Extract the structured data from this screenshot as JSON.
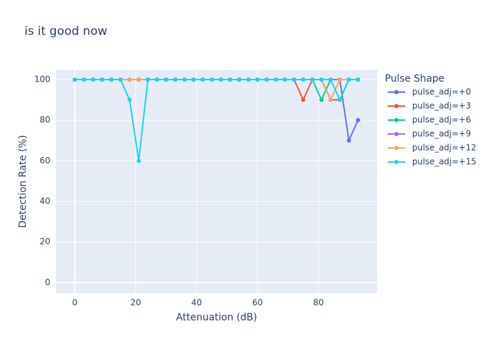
{
  "chart_data": {
    "type": "line",
    "title": "is it good now",
    "x_label": "Attenuation (dB)",
    "y_label": "Detection Rate (%)",
    "legend_title": "Pulse Shape",
    "x": [
      0,
      3,
      6,
      9,
      12,
      15,
      18,
      21,
      24,
      27,
      30,
      33,
      36,
      39,
      42,
      45,
      48,
      51,
      54,
      57,
      60,
      63,
      66,
      69,
      72,
      75,
      78,
      81,
      84,
      87,
      90,
      93
    ],
    "series": [
      {
        "name": "pulse_adj=+0",
        "color": "#636efa",
        "values": [
          100,
          100,
          100,
          100,
          100,
          100,
          100,
          100,
          100,
          100,
          100,
          100,
          100,
          100,
          100,
          100,
          100,
          100,
          100,
          100,
          100,
          100,
          100,
          100,
          100,
          100,
          100,
          100,
          100,
          100,
          70,
          80
        ]
      },
      {
        "name": "pulse_adj=+3",
        "color": "#EF553B",
        "values": [
          100,
          100,
          100,
          100,
          100,
          100,
          100,
          100,
          100,
          100,
          100,
          100,
          100,
          100,
          100,
          100,
          100,
          100,
          100,
          100,
          100,
          100,
          100,
          100,
          100,
          90,
          100,
          100,
          90,
          90,
          100,
          100
        ]
      },
      {
        "name": "pulse_adj=+6",
        "color": "#00cc96",
        "values": [
          100,
          100,
          100,
          100,
          100,
          100,
          100,
          100,
          100,
          100,
          100,
          100,
          100,
          100,
          100,
          100,
          100,
          100,
          100,
          100,
          100,
          100,
          100,
          100,
          100,
          100,
          100,
          90,
          100,
          100,
          100,
          100
        ]
      },
      {
        "name": "pulse_adj=+9",
        "color": "#ab63fa",
        "values": [
          100,
          100,
          100,
          100,
          100,
          100,
          100,
          100,
          100,
          100,
          100,
          100,
          100,
          100,
          100,
          100,
          100,
          100,
          100,
          100,
          100,
          100,
          100,
          100,
          100,
          100,
          100,
          100,
          100,
          100,
          100,
          100
        ]
      },
      {
        "name": "pulse_adj=+12",
        "color": "#FFA15A",
        "values": [
          100,
          100,
          100,
          100,
          100,
          100,
          100,
          100,
          100,
          100,
          100,
          100,
          100,
          100,
          100,
          100,
          100,
          100,
          100,
          100,
          100,
          100,
          100,
          100,
          100,
          100,
          100,
          100,
          90,
          100,
          100,
          100
        ]
      },
      {
        "name": "pulse_adj=+15",
        "color": "#19d3f3",
        "values": [
          100,
          100,
          100,
          100,
          100,
          100,
          90,
          60,
          100,
          100,
          100,
          100,
          100,
          100,
          100,
          100,
          100,
          100,
          100,
          100,
          100,
          100,
          100,
          100,
          100,
          100,
          100,
          100,
          100,
          90,
          100,
          100
        ]
      }
    ],
    "xlim": [
      -6.2,
      99.3
    ],
    "ylim": [
      -5.2,
      104.8
    ],
    "xticks": [
      0,
      20,
      40,
      60,
      80
    ],
    "yticks": [
      0,
      20,
      40,
      60,
      80,
      100
    ],
    "grid": true
  }
}
